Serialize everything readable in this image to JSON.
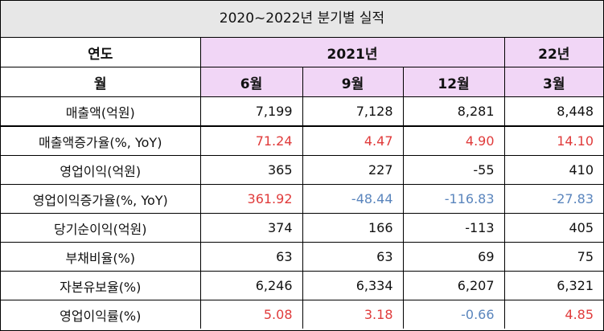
{
  "title": "2020~2022년 분기별 실적",
  "colors": {
    "header_fill": "#f1d6f6",
    "title_fill": "#e7e7e7",
    "positive_highlight": "#e03b3b",
    "negative_highlight": "#5a85bd"
  },
  "header": {
    "year_label": "연도",
    "year_2021": "2021년",
    "year_22": "22년",
    "month_label": "월",
    "months": [
      "6월",
      "9월",
      "12월",
      "3월"
    ]
  },
  "rows": [
    {
      "label": "매출액(억원)",
      "values": [
        "7,199",
        "7,128",
        "8,281",
        "8,448"
      ],
      "colors": [
        "",
        "",
        "",
        ""
      ]
    },
    {
      "label": "매출액증가율(%, YoY)",
      "values": [
        "71.24",
        "4.47",
        "4.90",
        "14.10"
      ],
      "colors": [
        "red",
        "red",
        "red",
        "red"
      ]
    },
    {
      "label": "영업이익(억원)",
      "values": [
        "365",
        "227",
        "-55",
        "410"
      ],
      "colors": [
        "",
        "",
        "",
        ""
      ]
    },
    {
      "label": "영업이익증가율(%, YoY)",
      "values": [
        "361.92",
        "-48.44",
        "-116.83",
        "-27.83"
      ],
      "colors": [
        "red",
        "blue",
        "blue",
        "blue"
      ]
    },
    {
      "label": "당기순이익(억원)",
      "values": [
        "374",
        "166",
        "-113",
        "405"
      ],
      "colors": [
        "",
        "",
        "",
        ""
      ]
    },
    {
      "label": "부채비율(%)",
      "values": [
        "63",
        "63",
        "69",
        "75"
      ],
      "colors": [
        "",
        "",
        "",
        ""
      ]
    },
    {
      "label": "자본유보율(%)",
      "values": [
        "6,246",
        "6,334",
        "6,207",
        "6,321"
      ],
      "colors": [
        "",
        "",
        "",
        ""
      ]
    },
    {
      "label": "영업이익률(%)",
      "values": [
        "5.08",
        "3.18",
        "-0.66",
        "4.85"
      ],
      "colors": [
        "red",
        "red",
        "blue",
        "red"
      ]
    }
  ]
}
